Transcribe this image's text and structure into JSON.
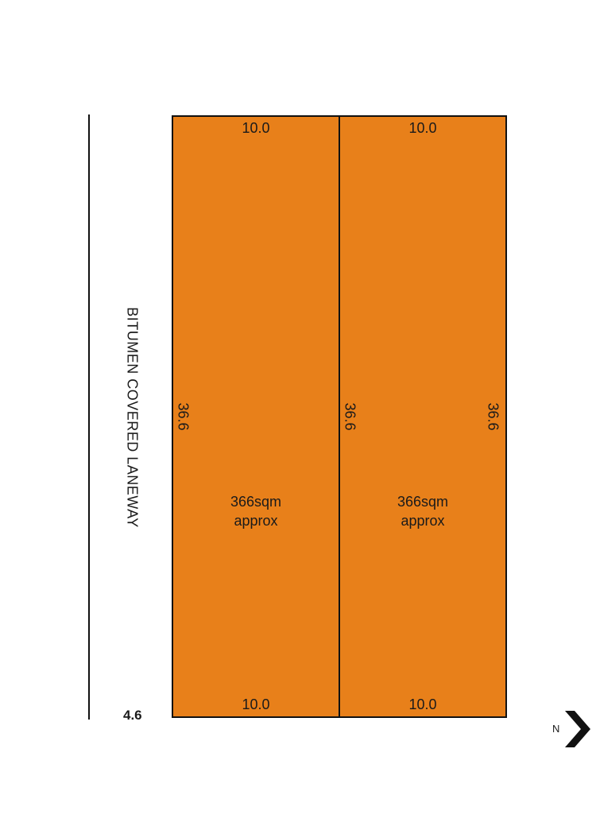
{
  "laneway": {
    "label": "BITUMEN COVERED LANEWAY",
    "width": "4.6"
  },
  "lots": [
    {
      "top": "10.0",
      "bottom": "10.0",
      "side": "36.6",
      "area_line1": "366sqm",
      "area_line2": "approx"
    },
    {
      "top": "10.0",
      "bottom": "10.0",
      "side_left": "36.6",
      "side_right": "36.6",
      "area_line1": "366sqm",
      "area_line2": "approx"
    }
  ],
  "north": {
    "letter": "N",
    "icon": "north-arrow-icon"
  },
  "colors": {
    "lot_fill": "#e8801a",
    "outline": "#111111"
  }
}
